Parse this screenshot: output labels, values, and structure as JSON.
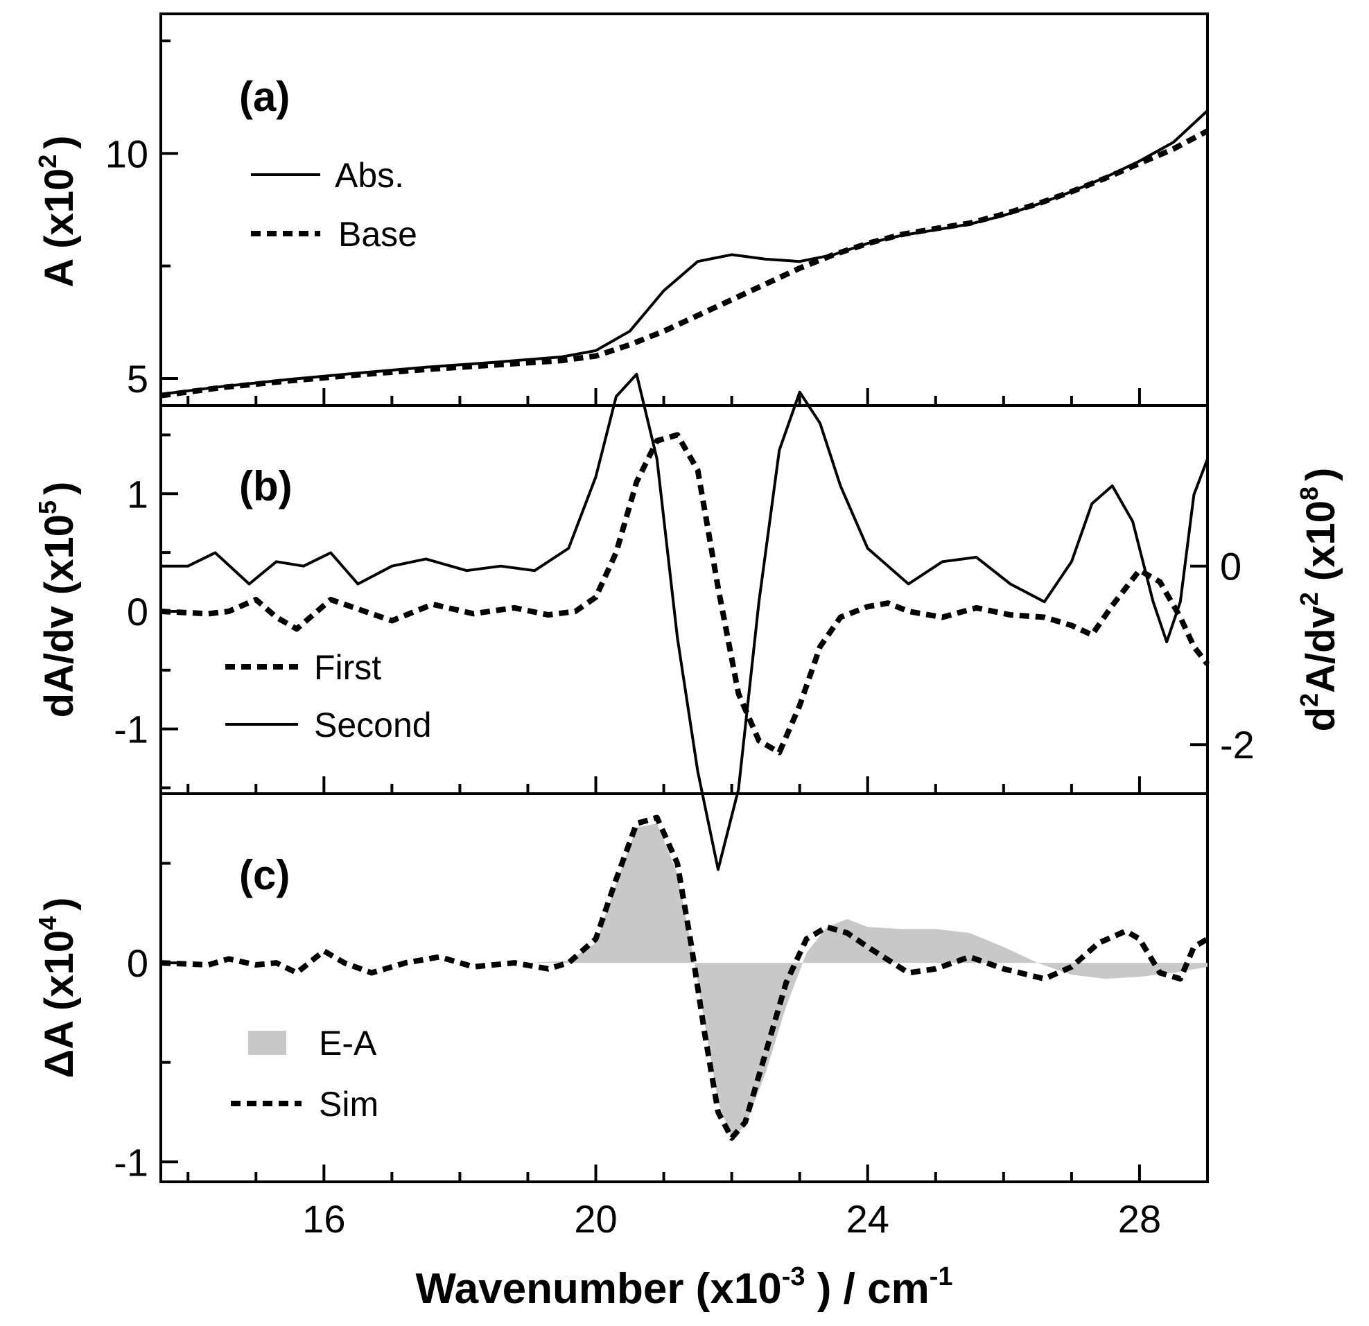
{
  "chart_data": [
    {
      "panel": "(a)",
      "type": "line",
      "ylabel_main": "A (x10",
      "ylabel_exp": "2",
      "ylabel_close": ")",
      "ylim": [
        4.4,
        13.1
      ],
      "yticks": [
        5,
        10
      ],
      "series": [
        {
          "name": "Abs.",
          "style": "solid",
          "x": [
            13.6,
            14.5,
            15.5,
            16.5,
            17.5,
            18.5,
            19.5,
            20.0,
            20.5,
            21.0,
            21.5,
            22.0,
            22.5,
            23.0,
            23.5,
            24.0,
            24.5,
            25.0,
            25.5,
            26.0,
            26.5,
            27.0,
            27.5,
            28.0,
            28.5,
            29.0
          ],
          "y": [
            4.65,
            4.82,
            4.98,
            5.12,
            5.25,
            5.36,
            5.48,
            5.62,
            6.05,
            6.95,
            7.6,
            7.75,
            7.65,
            7.6,
            7.75,
            8.0,
            8.18,
            8.3,
            8.43,
            8.62,
            8.87,
            9.15,
            9.47,
            9.83,
            10.25,
            10.95
          ]
        },
        {
          "name": "Base",
          "style": "dashed",
          "x": [
            13.6,
            14.5,
            15.5,
            16.5,
            17.5,
            18.5,
            19.5,
            20.0,
            20.5,
            21.0,
            21.5,
            22.0,
            22.5,
            23.0,
            23.5,
            24.0,
            24.5,
            25.0,
            25.5,
            26.0,
            26.5,
            27.0,
            27.5,
            28.0,
            28.5,
            29.0
          ],
          "y": [
            4.62,
            4.8,
            4.95,
            5.08,
            5.2,
            5.3,
            5.4,
            5.5,
            5.75,
            6.05,
            6.4,
            6.75,
            7.1,
            7.45,
            7.75,
            8.0,
            8.2,
            8.33,
            8.45,
            8.65,
            8.88,
            9.15,
            9.45,
            9.78,
            10.1,
            10.5
          ]
        }
      ]
    },
    {
      "panel": "(b)",
      "type": "line",
      "ylabel_main": "dA/dv (x10",
      "ylabel_exp": "5",
      "ylabel_close": ")",
      "y2label_prefix": "d",
      "y2label_exp1": "2",
      "y2label_mid": "A/dv",
      "y2label_exp2": "2",
      "y2label_tail": " (x10",
      "y2label_exp3": "8",
      "y2label_close": ")",
      "ylim": [
        -1.55,
        1.75
      ],
      "yticks": [
        -1,
        0,
        1
      ],
      "y2lim": [
        -2.55,
        1.8
      ],
      "y2ticks": [
        -2,
        0
      ],
      "series": [
        {
          "name": "First",
          "axis": "left",
          "style": "dashed",
          "x": [
            13.6,
            14.3,
            14.6,
            15.0,
            15.3,
            15.6,
            16.1,
            16.6,
            17.0,
            17.6,
            18.2,
            18.8,
            19.3,
            19.7,
            20.0,
            20.3,
            20.6,
            20.9,
            21.2,
            21.5,
            21.8,
            22.1,
            22.4,
            22.7,
            23.0,
            23.3,
            23.6,
            24.0,
            24.3,
            24.6,
            25.1,
            25.6,
            26.1,
            26.6,
            27.0,
            27.3,
            27.6,
            28.0,
            28.3,
            28.6,
            28.8,
            29.0
          ],
          "y": [
            0.0,
            -0.02,
            0.0,
            0.1,
            -0.05,
            -0.15,
            0.1,
            0.0,
            -0.08,
            0.06,
            -0.02,
            0.03,
            -0.03,
            0.0,
            0.12,
            0.5,
            1.1,
            1.45,
            1.5,
            1.2,
            0.2,
            -0.7,
            -1.1,
            -1.2,
            -0.8,
            -0.3,
            -0.05,
            0.04,
            0.07,
            0.0,
            -0.05,
            0.03,
            -0.03,
            -0.05,
            -0.12,
            -0.2,
            0.05,
            0.35,
            0.25,
            -0.05,
            -0.3,
            -0.45
          ]
        },
        {
          "name": "Second",
          "axis": "right",
          "style": "solid",
          "x": [
            13.6,
            14.0,
            14.4,
            14.9,
            15.3,
            15.7,
            16.1,
            16.5,
            17.0,
            17.5,
            18.1,
            18.6,
            19.1,
            19.6,
            20.0,
            20.3,
            20.6,
            20.9,
            21.2,
            21.5,
            21.8,
            22.1,
            22.4,
            22.7,
            23.0,
            23.3,
            23.6,
            24.0,
            24.6,
            25.1,
            25.6,
            26.1,
            26.6,
            27.0,
            27.3,
            27.6,
            27.9,
            28.2,
            28.4,
            28.6,
            28.8,
            29.0
          ],
          "y": [
            0.0,
            0.0,
            0.15,
            -0.2,
            0.05,
            0.0,
            0.15,
            -0.2,
            0.0,
            0.08,
            -0.05,
            0.0,
            -0.05,
            0.2,
            1.0,
            1.9,
            2.15,
            1.2,
            -0.8,
            -2.3,
            -3.4,
            -2.5,
            -0.4,
            1.3,
            1.95,
            1.6,
            0.9,
            0.2,
            -0.2,
            0.05,
            0.1,
            -0.2,
            -0.4,
            0.05,
            0.7,
            0.9,
            0.5,
            -0.4,
            -0.85,
            -0.4,
            0.8,
            1.2
          ]
        }
      ]
    },
    {
      "panel": "(c)",
      "type": "area",
      "ylabel_main": "ΔA (x10",
      "ylabel_exp": "4",
      "ylabel_close": ")",
      "ylim": [
        -1.1,
        0.85
      ],
      "yticks": [
        -1,
        0
      ],
      "series": [
        {
          "name": "E-A",
          "style": "filled",
          "color": "#c8c8c8",
          "x": [
            13.6,
            15.0,
            16.0,
            17.0,
            18.0,
            19.0,
            19.6,
            20.0,
            20.3,
            20.6,
            20.9,
            21.2,
            21.4,
            21.6,
            21.8,
            22.0,
            22.2,
            22.5,
            22.8,
            23.1,
            23.4,
            23.7,
            24.0,
            24.5,
            25.0,
            25.5,
            26.0,
            26.5,
            27.0,
            27.5,
            28.0,
            28.5,
            29.0
          ],
          "y": [
            0.0,
            0.0,
            0.0,
            0.0,
            0.0,
            0.0,
            0.01,
            0.1,
            0.4,
            0.68,
            0.7,
            0.45,
            0.1,
            -0.3,
            -0.7,
            -0.88,
            -0.82,
            -0.55,
            -0.22,
            0.05,
            0.18,
            0.22,
            0.18,
            0.17,
            0.17,
            0.15,
            0.08,
            0.0,
            -0.06,
            -0.08,
            -0.07,
            -0.05,
            -0.02
          ]
        },
        {
          "name": "Sim",
          "style": "dashed",
          "x": [
            13.6,
            14.3,
            14.6,
            15.0,
            15.3,
            15.6,
            16.0,
            16.3,
            16.7,
            17.2,
            17.7,
            18.2,
            18.8,
            19.3,
            19.6,
            20.0,
            20.3,
            20.6,
            20.9,
            21.2,
            21.4,
            21.6,
            21.8,
            22.0,
            22.2,
            22.5,
            22.8,
            23.1,
            23.4,
            23.7,
            24.0,
            24.6,
            25.0,
            25.5,
            26.0,
            26.6,
            27.0,
            27.4,
            27.8,
            28.0,
            28.3,
            28.6,
            28.8,
            29.0
          ],
          "y": [
            0.0,
            -0.01,
            0.02,
            -0.01,
            0.0,
            -0.05,
            0.06,
            0.0,
            -0.05,
            0.0,
            0.03,
            -0.02,
            0.0,
            -0.03,
            0.0,
            0.12,
            0.42,
            0.7,
            0.73,
            0.5,
            0.1,
            -0.35,
            -0.75,
            -0.88,
            -0.8,
            -0.45,
            -0.1,
            0.12,
            0.18,
            0.15,
            0.08,
            -0.05,
            -0.03,
            0.03,
            -0.03,
            -0.08,
            -0.02,
            0.1,
            0.16,
            0.12,
            -0.05,
            -0.08,
            0.08,
            0.12
          ]
        }
      ]
    }
  ],
  "x_axis": {
    "xlim": [
      13.6,
      29.0
    ],
    "ticks": [
      16,
      20,
      24,
      28
    ],
    "minor_ticks": [
      14,
      15,
      17,
      18,
      19,
      21,
      22,
      23,
      25,
      26,
      27,
      29
    ],
    "label_main": "Wavenumber (x10",
    "label_exp": "-3",
    "label_mid": " ) / cm",
    "label_exp2": "-1"
  }
}
